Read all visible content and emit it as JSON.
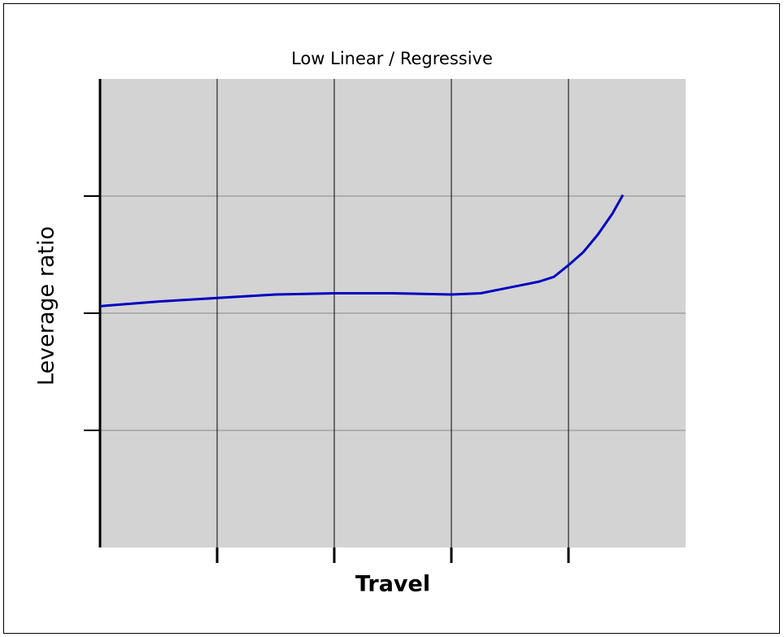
{
  "chart_data": {
    "type": "line",
    "title": "Low Linear / Regressive",
    "x_label": "Travel",
    "y_label": "Leverage ratio",
    "x": [
      0,
      0.5,
      1,
      1.5,
      2,
      2.5,
      3,
      3.25,
      3.5,
      3.75,
      3.875,
      4,
      4.125,
      4.25,
      4.375,
      4.465
    ],
    "series": [
      {
        "color": "#0000c0",
        "values": [
          2.06,
          2.1,
          2.13,
          2.16,
          2.17,
          2.17,
          2.16,
          2.17,
          2.22,
          2.27,
          2.31,
          2.41,
          2.52,
          2.67,
          2.85,
          3.01
        ]
      }
    ],
    "xlim": [
      0,
      5
    ],
    "xticks": [
      1,
      2,
      3,
      4
    ],
    "ylim": [
      0,
      4
    ],
    "yticks": [
      1,
      2,
      3
    ],
    "grid": true
  }
}
